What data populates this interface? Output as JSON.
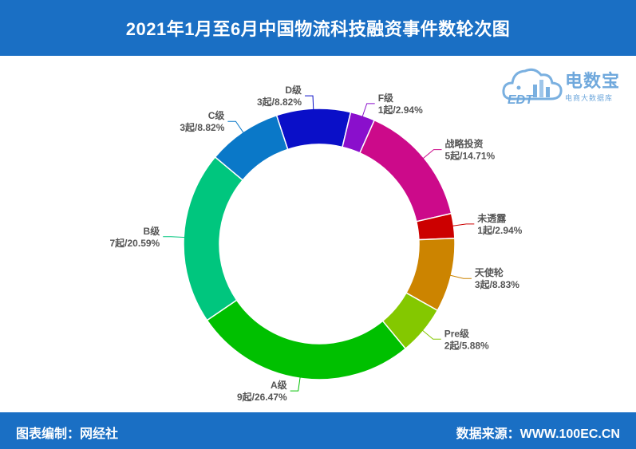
{
  "header": {
    "title": "2021年1月至6月中国物流科技融资事件数轮次图"
  },
  "footer": {
    "editor": "图表编制：网经社",
    "source": "数据来源：WWW.100EC.CN"
  },
  "logo": {
    "name": "电数宝",
    "subtitle": "电商大数据库",
    "mark": "EDT",
    "icon": "cloud-bars-logo"
  },
  "chart_data": {
    "type": "pie",
    "donut": true,
    "title": "2021年1月至6月中国物流科技融资事件数轮次图",
    "unit": "起",
    "slices": [
      {
        "name": "D级",
        "value": 3,
        "percent": "8.82%",
        "color": "#0a0fc8",
        "text": "3起/8.82%"
      },
      {
        "name": "F级",
        "value": 1,
        "percent": "2.94%",
        "color": "#8a0fcc",
        "text": "1起/2.94%"
      },
      {
        "name": "战略投资",
        "value": 5,
        "percent": "14.71%",
        "color": "#cc0a8a",
        "text": "5起/14.71%"
      },
      {
        "name": "未透露",
        "value": 1,
        "percent": "2.94%",
        "color": "#cc0000",
        "text": "1起/2.94%"
      },
      {
        "name": "天使轮",
        "value": 3,
        "percent": "8.83%",
        "color": "#cc8400",
        "text": "3起/8.83%"
      },
      {
        "name": "Pre级",
        "value": 2,
        "percent": "5.88%",
        "color": "#84c800",
        "text": "2起/5.88%"
      },
      {
        "name": "A级",
        "value": 9,
        "percent": "26.47%",
        "color": "#00c000",
        "text": "9起/26.47%"
      },
      {
        "name": "B级",
        "value": 7,
        "percent": "20.59%",
        "color": "#00c67e",
        "text": "7起/20.59%"
      },
      {
        "name": "C级",
        "value": 3,
        "percent": "8.82%",
        "color": "#0a78c8",
        "text": "3起/8.82%"
      }
    ]
  }
}
